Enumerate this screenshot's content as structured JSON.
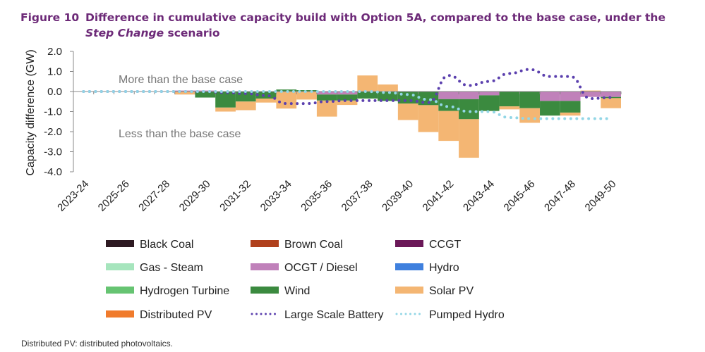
{
  "figure_number": "Figure 10",
  "title_parts": [
    "Difference in cumulative capacity build with Option 5A, compared to the base case, under the ",
    "Step Change",
    " scenario"
  ],
  "footer": "Distributed PV: distributed photovoltaics.",
  "chart_data": {
    "type": "bar",
    "stacked": true,
    "title": "Difference in cumulative capacity build with Option 5A, compared to the base case, under the Step Change scenario",
    "xlabel": "",
    "ylabel": "Capacity difference (GW)",
    "ylim": [
      -4.0,
      2.0
    ],
    "yticks": [
      "2.0",
      "1.0",
      "0.0",
      "-1.0",
      "-2.0",
      "-3.0",
      "-4.0"
    ],
    "ytick_values": [
      2,
      1,
      0,
      -1,
      -2,
      -3,
      -4
    ],
    "grid": false,
    "legend_position": "bottom",
    "annotations": [
      "More than the base case",
      "Less than the base case"
    ],
    "categories": [
      "2023-24",
      "2024-25",
      "2025-26",
      "2026-27",
      "2027-28",
      "2028-29",
      "2029-30",
      "2030-31",
      "2031-32",
      "2032-33",
      "2033-34",
      "2034-35",
      "2035-36",
      "2036-37",
      "2037-38",
      "2038-39",
      "2039-40",
      "2040-41",
      "2041-42",
      "2042-43",
      "2043-44",
      "2044-45",
      "2045-46",
      "2046-47",
      "2047-48",
      "2048-49",
      "2049-50"
    ],
    "xtick_labels": [
      "2023-24",
      "2025-26",
      "2027-28",
      "2029-30",
      "2031-32",
      "2033-34",
      "2035-36",
      "2037-38",
      "2039-40",
      "2041-42",
      "2043-44",
      "2045-46",
      "2047-48",
      "2049-50"
    ],
    "series": [
      {
        "name": "Black Coal",
        "kind": "bar",
        "color": "#2e1a22",
        "values": [
          0,
          0,
          0,
          0,
          0,
          0,
          0,
          0,
          0,
          0,
          0,
          0,
          0,
          0,
          0,
          0,
          0,
          0,
          0,
          0,
          0,
          0,
          0,
          0,
          0,
          0,
          0
        ]
      },
      {
        "name": "Brown Coal",
        "kind": "bar",
        "color": "#b0401c",
        "values": [
          0,
          0,
          0,
          0,
          0,
          0,
          0,
          0,
          0,
          0,
          0,
          0,
          0,
          0,
          0,
          0,
          0,
          0,
          0,
          0,
          0,
          0,
          0,
          0,
          0,
          0,
          0
        ]
      },
      {
        "name": "CCGT",
        "kind": "bar",
        "color": "#6b1858",
        "values": [
          0,
          0,
          0,
          0,
          0,
          0,
          0,
          0,
          0,
          0,
          0,
          0,
          0,
          0,
          0,
          0,
          0,
          0,
          0,
          0,
          0,
          0,
          0,
          0,
          0,
          0,
          0
        ]
      },
      {
        "name": "Gas - Steam",
        "kind": "bar",
        "color": "#a6e5bd",
        "values": [
          0,
          0,
          0,
          0,
          0,
          0,
          0,
          0,
          0,
          0,
          0,
          0,
          0,
          0,
          0,
          0,
          0,
          0,
          0,
          0,
          0,
          0,
          0,
          0,
          0,
          0,
          0
        ]
      },
      {
        "name": "OCGT / Diesel",
        "kind": "bar",
        "color": "#c081ba",
        "values": [
          0,
          0,
          0,
          0,
          0,
          0.05,
          0.05,
          0,
          0,
          0,
          0,
          0,
          -0.15,
          -0.15,
          0,
          0,
          0,
          0,
          -0.38,
          -0.38,
          -0.19,
          0,
          0,
          -0.47,
          -0.47,
          -0.27,
          -0.27
        ]
      },
      {
        "name": "Hydro",
        "kind": "bar",
        "color": "#3f80de",
        "values": [
          0,
          0,
          0,
          0,
          0,
          0,
          0,
          0,
          0,
          0,
          0,
          0,
          0,
          0,
          0,
          0,
          0,
          0,
          0,
          0,
          0,
          0,
          0,
          0,
          0,
          0,
          0
        ]
      },
      {
        "name": "Hydrogen Turbine",
        "kind": "bar",
        "color": "#66c472",
        "values": [
          0,
          0,
          0,
          0,
          0,
          0,
          0,
          0,
          0,
          0,
          0,
          0,
          0,
          0,
          0,
          0,
          0,
          0,
          0,
          0,
          0,
          0,
          0,
          0,
          0,
          0,
          0
        ]
      },
      {
        "name": "Wind",
        "kind": "bar",
        "color": "#3b8a3f",
        "values": [
          0,
          0,
          0,
          0,
          0,
          0,
          -0.3,
          -0.8,
          -0.5,
          -0.35,
          0.1,
          0.07,
          -0.3,
          -0.3,
          -0.35,
          -0.47,
          -0.6,
          -0.68,
          -0.59,
          -1.0,
          -0.78,
          -0.74,
          -0.83,
          -0.73,
          -0.58,
          0,
          -0.06
        ]
      },
      {
        "name": "Solar PV",
        "kind": "bar",
        "color": "#f4b673",
        "values": [
          0,
          0,
          0,
          0,
          0,
          -0.15,
          0,
          -0.2,
          -0.43,
          -0.2,
          -0.85,
          -0.4,
          -0.8,
          -0.22,
          0.8,
          0.35,
          -0.82,
          -1.34,
          -1.49,
          -1.92,
          0,
          -0.15,
          -0.73,
          0,
          -0.15,
          0.05,
          -0.5
        ]
      },
      {
        "name": "Distributed PV",
        "kind": "bar",
        "color": "#f07b2c",
        "values": [
          0,
          0,
          0,
          0,
          0,
          0,
          0,
          0,
          0,
          0,
          0,
          0,
          0,
          0,
          0,
          0,
          0,
          0,
          0,
          0,
          0,
          0,
          0,
          0,
          0,
          0,
          0
        ]
      },
      {
        "name": "Large Scale Battery",
        "kind": "line",
        "style": "dotted",
        "color": "#5b40ae",
        "values": [
          0,
          0,
          0,
          0,
          0,
          0,
          0,
          -0.05,
          -0.1,
          -0.2,
          -0.6,
          -0.6,
          -0.5,
          -0.45,
          -0.45,
          -0.45,
          -0.45,
          -0.55,
          0.8,
          0.3,
          0.5,
          0.9,
          1.1,
          0.75,
          0.75,
          -0.35,
          -0.3
        ]
      },
      {
        "name": "Pumped Hydro",
        "kind": "line",
        "style": "dotted",
        "color": "#92d6e6",
        "values": [
          0,
          0,
          0,
          0,
          0,
          0,
          0,
          0,
          0,
          0,
          0,
          0,
          0,
          0,
          0,
          -0.05,
          -0.15,
          -0.4,
          -0.75,
          -1.0,
          -1.0,
          -1.3,
          -1.35,
          -1.35,
          -1.35,
          -1.35,
          -1.35
        ]
      }
    ]
  }
}
